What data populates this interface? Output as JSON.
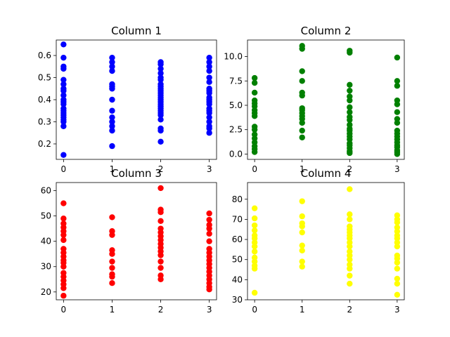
{
  "chart_data": [
    {
      "type": "scatter",
      "title": "Column 1",
      "color": "#0000ff",
      "xlim": [
        -0.15,
        3.15
      ],
      "ylim": [
        0.13,
        0.67
      ],
      "xticks": [
        0,
        1,
        2,
        3
      ],
      "yticks": [
        0.2,
        0.3,
        0.4,
        0.5,
        0.6
      ],
      "ytick_labels": [
        "0.2",
        "0.3",
        "0.4",
        "0.5",
        "0.6"
      ],
      "points": {
        "0": [
          0.15,
          0.28,
          0.3,
          0.31,
          0.32,
          0.33,
          0.34,
          0.35,
          0.36,
          0.38,
          0.39,
          0.4,
          0.42,
          0.44,
          0.45,
          0.47,
          0.49,
          0.54,
          0.55,
          0.59,
          0.65
        ],
        "1": [
          0.19,
          0.26,
          0.28,
          0.3,
          0.32,
          0.35,
          0.4,
          0.45,
          0.46,
          0.47,
          0.53,
          0.55,
          0.57,
          0.59
        ],
        "2": [
          0.21,
          0.26,
          0.27,
          0.31,
          0.33,
          0.34,
          0.35,
          0.36,
          0.37,
          0.38,
          0.39,
          0.4,
          0.41,
          0.42,
          0.43,
          0.44,
          0.45,
          0.46,
          0.47,
          0.49,
          0.5,
          0.52,
          0.54,
          0.56,
          0.57
        ],
        "3": [
          0.25,
          0.27,
          0.28,
          0.3,
          0.32,
          0.34,
          0.35,
          0.36,
          0.38,
          0.39,
          0.4,
          0.41,
          0.43,
          0.44,
          0.45,
          0.48,
          0.5,
          0.53,
          0.55,
          0.57,
          0.59
        ]
      }
    },
    {
      "type": "scatter",
      "title": "Column 2",
      "color": "#008000",
      "xlim": [
        -0.15,
        3.15
      ],
      "ylim": [
        -0.55,
        11.7
      ],
      "xticks": [
        0,
        1,
        2,
        3
      ],
      "yticks": [
        0,
        2.5,
        5,
        7.5,
        10
      ],
      "ytick_labels": [
        "0.0",
        "2.5",
        "5.0",
        "7.5",
        "10.0"
      ],
      "points": {
        "0": [
          0.2,
          0.5,
          0.8,
          1.2,
          1.6,
          2.0,
          2.5,
          2.8,
          3.9,
          4.2,
          4.5,
          4.9,
          5.2,
          5.5,
          6.3,
          7.3,
          7.8
        ],
        "1": [
          1.7,
          2.4,
          3.2,
          3.6,
          3.9,
          4.2,
          4.5,
          4.7,
          6.0,
          6.3,
          7.5,
          8.5,
          10.8,
          11.1
        ],
        "2": [
          0.1,
          0.3,
          0.6,
          0.9,
          1.1,
          1.5,
          1.8,
          2.1,
          2.4,
          2.6,
          3.0,
          3.5,
          3.8,
          4.3,
          4.8,
          5.5,
          5.9,
          6.5,
          7.1,
          10.4,
          10.6
        ],
        "3": [
          0.0,
          0.2,
          0.4,
          0.7,
          0.9,
          1.2,
          1.5,
          1.8,
          2.1,
          2.4,
          3.2,
          3.6,
          4.3,
          5.1,
          5.5,
          7.0,
          7.5,
          9.9
        ]
      }
    },
    {
      "type": "scatter",
      "title": "Column 3",
      "color": "#ff0000",
      "xlim": [
        -0.15,
        3.15
      ],
      "ylim": [
        16.9,
        63.2
      ],
      "xticks": [
        0,
        1,
        2,
        3
      ],
      "yticks": [
        20,
        30,
        40,
        50,
        60
      ],
      "ytick_labels": [
        "20",
        "30",
        "40",
        "50",
        "60"
      ],
      "points": {
        "0": [
          18.5,
          21.5,
          23.0,
          24.5,
          26.0,
          27.5,
          30.0,
          31.5,
          32.5,
          34.0,
          35.5,
          37.0,
          40.5,
          42.5,
          44.0,
          45.5,
          47.0,
          49.0,
          55.0
        ],
        "1": [
          23.5,
          26.0,
          27.0,
          29.5,
          32.0,
          35.0,
          36.5,
          42.5,
          44.0,
          49.5
        ],
        "2": [
          25.0,
          26.5,
          29.5,
          32.0,
          34.5,
          36.0,
          37.5,
          39.0,
          40.5,
          42.0,
          43.5,
          45.0,
          48.0,
          51.5,
          52.5,
          61.0
        ],
        "3": [
          21.0,
          22.0,
          23.5,
          25.0,
          26.5,
          28.0,
          29.5,
          31.0,
          32.5,
          34.0,
          35.5,
          37.0,
          40.0,
          43.0,
          45.0,
          46.5,
          48.5,
          51.0
        ]
      }
    },
    {
      "type": "scatter",
      "title": "Column 4",
      "color": "#ffff00",
      "xlim": [
        -0.15,
        3.15
      ],
      "ylim": [
        30.0,
        88.3
      ],
      "xticks": [
        0,
        1,
        2,
        3
      ],
      "yticks": [
        30,
        40,
        50,
        60,
        70,
        80
      ],
      "ytick_labels": [
        "30",
        "40",
        "50",
        "60",
        "70",
        "80"
      ],
      "points": {
        "0": [
          33.5,
          45.5,
          47.0,
          49.0,
          51.0,
          54.0,
          56.5,
          58.5,
          60.5,
          62.0,
          64.5,
          67.0,
          70.5,
          75.5
        ],
        "1": [
          46.5,
          49.0,
          54.5,
          57.0,
          63.5,
          66.5,
          68.0,
          71.5,
          79.0
        ],
        "2": [
          38.0,
          42.0,
          45.5,
          47.5,
          50.0,
          52.0,
          54.0,
          56.5,
          58.5,
          60.5,
          62.0,
          63.5,
          65.0,
          66.5,
          70.0,
          72.5,
          85.0
        ],
        "3": [
          32.5,
          38.0,
          40.5,
          45.5,
          48.5,
          50.5,
          52.0,
          56.5,
          58.5,
          60.5,
          62.0,
          64.0,
          66.0,
          68.5,
          70.0,
          72.0
        ]
      }
    }
  ]
}
